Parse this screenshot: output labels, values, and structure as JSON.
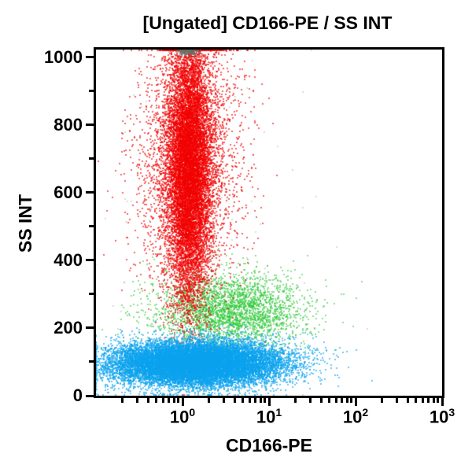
{
  "title": "[Ungated] CD166-PE / SS INT",
  "axes": {
    "x": {
      "label": "CD166-PE",
      "scale": "log",
      "ticks": [
        {
          "text": "10",
          "exp": "0",
          "log": 0
        },
        {
          "text": "10",
          "exp": "1",
          "log": 1
        },
        {
          "text": "10",
          "exp": "2",
          "log": 2
        },
        {
          "text": "10",
          "exp": "3",
          "log": 3
        }
      ],
      "minor_decades": [
        -1,
        0,
        1,
        2
      ]
    },
    "y": {
      "label": "SS INT",
      "ticks": [
        {
          "label": "0",
          "value": 0
        },
        {
          "label": "200",
          "value": 200
        },
        {
          "label": "400",
          "value": 400
        },
        {
          "label": "600",
          "value": 600
        },
        {
          "label": "800",
          "value": 800
        },
        {
          "label": "1000",
          "value": 1000
        }
      ],
      "minor_values": [
        100,
        300,
        500,
        700,
        900
      ]
    }
  },
  "chart_data": {
    "type": "scatter",
    "title": "[Ungated] CD166-PE / SS INT",
    "xlabel": "CD166-PE",
    "ylabel": "SS INT",
    "x_scale": "log",
    "x_log_range": [
      -1,
      3
    ],
    "y_range": [
      0,
      1023
    ],
    "x_tick_values": [
      1,
      10,
      100,
      1000
    ],
    "y_tick_values": [
      0,
      200,
      400,
      600,
      800,
      1000
    ],
    "grid": false,
    "legend": false,
    "populations": [
      {
        "name": "scattered-debris",
        "color": "#999999",
        "alpha": 0.35,
        "count": 140,
        "x_log_mean": 0.35,
        "x_log_sd": 0.65,
        "y_mean": 480,
        "y_sd": 320
      },
      {
        "name": "green-population",
        "color": "#2dc937",
        "alpha": 0.55,
        "count": 3000,
        "x_log_mean": 0.55,
        "x_log_sd": 0.42,
        "y_mean": 252,
        "y_sd": 56
      },
      {
        "name": "red-population",
        "color": "#f20000",
        "alpha": 0.6,
        "count": 14000,
        "x_log_mean": 0.08,
        "x_log_sd": 0.13,
        "x_halo_sd": 0.3,
        "halo_frac": 0.22,
        "y_mean": 680,
        "y_sd": 200
      },
      {
        "name": "saturated-top-smudge",
        "color": "#6b6f66",
        "alpha": 0.4,
        "count": 240,
        "x_log_mean": 0.06,
        "x_log_sd": 0.06,
        "y_mean": 1016,
        "y_sd": 6
      },
      {
        "name": "blue-population",
        "color": "#0aa2ee",
        "alpha": 0.6,
        "count": 17000,
        "x_log_mean": 0.15,
        "x_log_sd": 0.5,
        "y_mean": 95,
        "y_sd": 33
      }
    ]
  }
}
